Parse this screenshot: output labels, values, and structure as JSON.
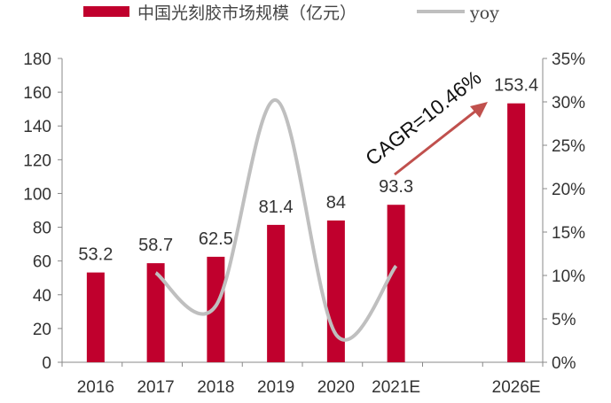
{
  "chart_data": {
    "type": "bar+line",
    "categories": [
      "2016",
      "2017",
      "2018",
      "2019",
      "2020",
      "2021E",
      "",
      "2026E"
    ],
    "series": [
      {
        "name": "中国光刻胶市场规模（亿元）",
        "type": "bar",
        "axis": "left",
        "color": "#c0002d",
        "values": [
          53.2,
          58.7,
          62.5,
          81.4,
          84,
          93.3,
          null,
          153.4
        ],
        "labels": [
          "53.2",
          "58.7",
          "62.5",
          "81.4",
          "84",
          "93.3",
          "",
          "153.4"
        ]
      },
      {
        "name": "yoy",
        "type": "line",
        "axis": "right",
        "color": "#bfbfbf",
        "smooth": true,
        "values": [
          null,
          10.3,
          6.5,
          30.2,
          3.2,
          11.1,
          null,
          null
        ]
      }
    ],
    "left_axis": {
      "ylim": [
        0,
        180
      ],
      "ticks": [
        "0",
        "20",
        "40",
        "60",
        "80",
        "100",
        "120",
        "140",
        "160",
        "180"
      ]
    },
    "right_axis": {
      "ylim": [
        0,
        35
      ],
      "unit": "%",
      "ticks": [
        "0%",
        "5%",
        "10%",
        "15%",
        "20%",
        "25%",
        "30%",
        "35%"
      ]
    },
    "annotation": {
      "text": "CAGR=10.46%",
      "from": "2021E",
      "to": "2026E",
      "arrow_color": "#c0504d"
    },
    "legend": "top",
    "grid": false
  }
}
